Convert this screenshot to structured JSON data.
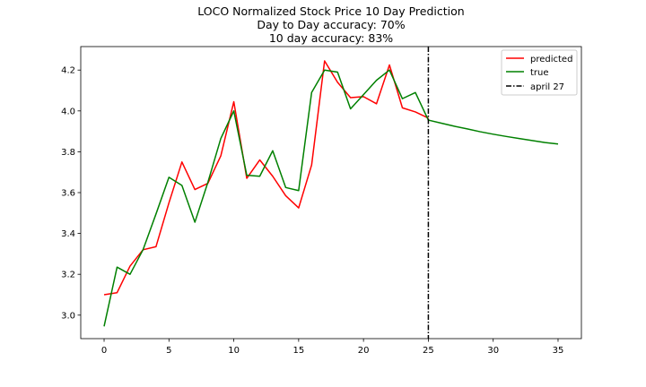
{
  "chart_data": {
    "type": "line",
    "title_lines": [
      "LOCO Normalized Stock Price 10 Day Prediction",
      "Day to Day accuracy: 70%",
      "10 day accuracy: 83%"
    ],
    "xlim": [
      -1.8,
      36.8
    ],
    "ylim": [
      2.885,
      4.315
    ],
    "xticks": [
      0,
      5,
      10,
      15,
      20,
      25,
      30,
      35
    ],
    "xtick_labels": [
      "0",
      "5",
      "10",
      "15",
      "20",
      "25",
      "30",
      "35"
    ],
    "yticks": [
      3.0,
      3.2,
      3.4,
      3.6,
      3.8,
      4.0,
      4.2
    ],
    "ytick_labels": [
      "3.0",
      "3.2",
      "3.4",
      "3.6",
      "3.8",
      "4.0",
      "4.2"
    ],
    "grid": false,
    "legend_position": "top-right",
    "series": [
      {
        "name": "predicted",
        "color": "#ff0000",
        "x": [
          0,
          1,
          2,
          3,
          4,
          5,
          6,
          7,
          8,
          9,
          10,
          11,
          12,
          13,
          14,
          15,
          16,
          17,
          18,
          19,
          20,
          21,
          22,
          23,
          24,
          25
        ],
        "y": [
          3.1,
          3.11,
          3.24,
          3.32,
          3.335,
          3.55,
          3.75,
          3.615,
          3.645,
          3.78,
          4.045,
          3.67,
          3.76,
          3.68,
          3.585,
          3.525,
          3.735,
          4.245,
          4.14,
          4.065,
          4.07,
          4.035,
          4.225,
          4.015,
          3.995,
          3.965
        ]
      },
      {
        "name": "true",
        "color": "#008000",
        "x": [
          0,
          1,
          2,
          3,
          4,
          5,
          6,
          7,
          8,
          9,
          10,
          11,
          12,
          13,
          14,
          15,
          16,
          17,
          18,
          19,
          20,
          21,
          22,
          23,
          24,
          25,
          26,
          27,
          28,
          29,
          30,
          31,
          32,
          33,
          34,
          35
        ],
        "y": [
          2.945,
          3.235,
          3.2,
          3.32,
          3.495,
          3.675,
          3.635,
          3.455,
          3.65,
          3.865,
          4.0,
          3.685,
          3.68,
          3.805,
          3.625,
          3.61,
          4.09,
          4.2,
          4.19,
          4.01,
          4.08,
          4.15,
          4.2,
          4.06,
          4.09,
          3.955,
          3.94,
          3.925,
          3.912,
          3.898,
          3.886,
          3.875,
          3.865,
          3.855,
          3.845,
          3.838
        ]
      }
    ],
    "vline": {
      "name": "april 27",
      "x": 25,
      "color": "#000000",
      "style": "dashdot"
    }
  }
}
